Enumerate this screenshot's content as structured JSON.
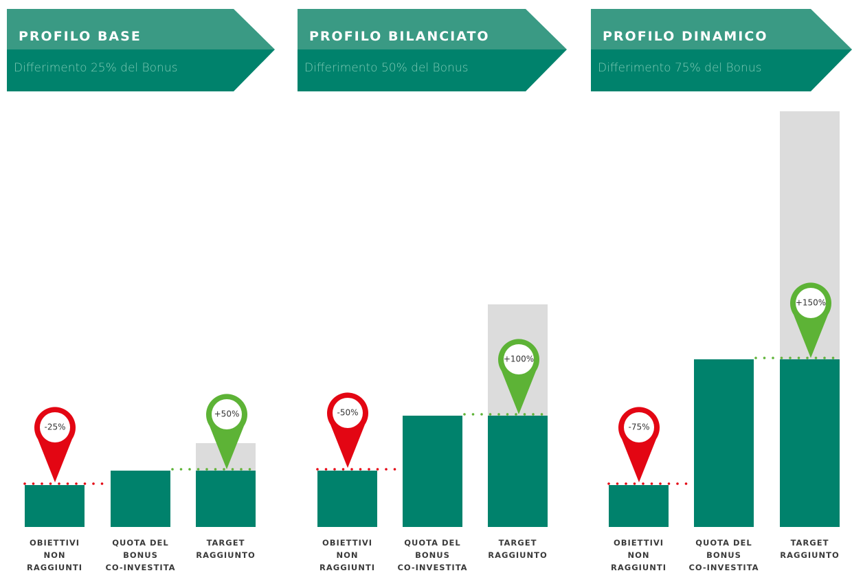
{
  "panels": [
    {
      "title": "PROFILO BASE",
      "subtitle": "Differimento 25% del Bonus",
      "pin_low": "-25%",
      "pin_high": "+50%",
      "labels": [
        [
          "OBIETTIVI",
          "NON",
          "RAGGIUNTI"
        ],
        [
          "QUOTA DEL",
          "BONUS",
          "CO-INVESTITA"
        ],
        [
          "TARGET",
          "RAGGIUNTO"
        ]
      ]
    },
    {
      "title": "PROFILO BILANCIATO",
      "subtitle": "Differimento 50% del Bonus",
      "pin_low": "-50%",
      "pin_high": "+100%",
      "labels": [
        [
          "OBIETTIVI",
          "NON",
          "RAGGIUNTI"
        ],
        [
          "QUOTA DEL",
          "BONUS",
          "CO-INVESTITA"
        ],
        [
          "TARGET",
          "RAGGIUNTO"
        ]
      ]
    },
    {
      "title": "PROFILO DINAMICO",
      "subtitle": "Differimento 75% del Bonus",
      "pin_low": "-75%",
      "pin_high": "+150%",
      "labels": [
        [
          "OBIETTIVI",
          "NON",
          "RAGGIUNTI"
        ],
        [
          "QUOTA DEL",
          "BONUS",
          "CO-INVESTITA"
        ],
        [
          "TARGET",
          "RAGGIUNTO"
        ]
      ]
    }
  ]
}
